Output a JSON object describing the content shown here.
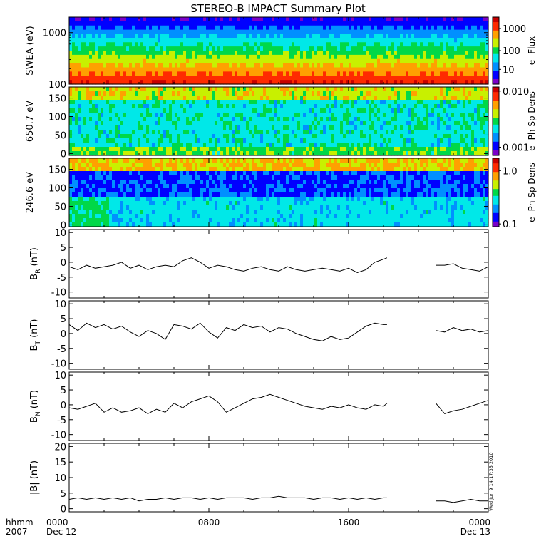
{
  "title": "STEREO-B IMPACT Summary Plot",
  "time_axis": {
    "row1_label": "hhmm",
    "row2_label": "2007",
    "ticks": [
      {
        "hours": 0,
        "time": "0000",
        "date": "Dec 12"
      },
      {
        "hours": 8,
        "time": "0800",
        "date": ""
      },
      {
        "hours": 16,
        "time": "1600",
        "date": ""
      },
      {
        "hours": 24,
        "time": "0000",
        "date": "Dec 13"
      }
    ],
    "range_hours": [
      0,
      24
    ]
  },
  "timestamp": "Wed Jun 9 14:17:35 2010",
  "colors": {
    "spectrogram_scale": [
      "#7a00c8",
      "#0000ff",
      "#0090ff",
      "#00e8e8",
      "#00d848",
      "#c8f000",
      "#ffa000",
      "#ff2a00",
      "#c80000"
    ],
    "gap_color": "#ffffff"
  },
  "spectrograms": [
    {
      "key": "swea",
      "ylabel": "SWEA (eV)",
      "ylog": true,
      "ylim": [
        100,
        2000
      ],
      "yticks": [
        {
          "v": 100,
          "t": "100"
        },
        {
          "v": 1000,
          "t": "1000"
        }
      ],
      "colorbar_label": "e- Flux",
      "colorbar_log": true,
      "colorbar_ticks": [
        {
          "f": 0.22,
          "t": "10"
        },
        {
          "f": 0.5,
          "t": "100"
        },
        {
          "f": 0.83,
          "t": "1000"
        }
      ]
    },
    {
      "key": "pad650",
      "ylabel": "650.7 eV",
      "ylog": false,
      "ylim": [
        -5,
        180
      ],
      "yticks": [
        {
          "v": 0,
          "t": "0"
        },
        {
          "v": 50,
          "t": "50"
        },
        {
          "v": 100,
          "t": "100"
        },
        {
          "v": 150,
          "t": "150"
        }
      ],
      "colorbar_label": "e- Ph Sp Dens",
      "colorbar_log": true,
      "colorbar_ticks": [
        {
          "f": 0.12,
          "t": "0.001"
        },
        {
          "f": 0.94,
          "t": "0.010"
        }
      ]
    },
    {
      "key": "pad246",
      "ylabel": "246.6 eV",
      "ylog": false,
      "ylim": [
        -5,
        180
      ],
      "yticks": [
        {
          "v": 0,
          "t": "0"
        },
        {
          "v": 50,
          "t": "50"
        },
        {
          "v": 100,
          "t": "100"
        },
        {
          "v": 150,
          "t": "150"
        }
      ],
      "colorbar_label": "e- Ph Sp Dens",
      "colorbar_log": true,
      "colorbar_ticks": [
        {
          "f": 0.04,
          "t": "0.1"
        },
        {
          "f": 0.82,
          "t": "1.0"
        }
      ]
    }
  ],
  "chart_data": [
    {
      "type": "line",
      "ylabel_main": "B",
      "ylabel_sub": "R",
      "ylabel_unit": " (nT)",
      "ylim": [
        -12,
        11
      ],
      "yticks": [
        -10,
        -5,
        0,
        5,
        10
      ],
      "data_gaps_hours": [
        [
          18.2,
          21.0
        ]
      ],
      "x_hours": [
        0,
        0.5,
        1,
        1.5,
        2,
        2.5,
        3,
        3.5,
        4,
        4.5,
        5,
        5.5,
        6,
        6.5,
        7,
        7.5,
        8,
        8.5,
        9,
        9.5,
        10,
        10.5,
        11,
        11.5,
        12,
        12.5,
        13,
        13.5,
        14,
        14.5,
        15,
        15.5,
        16,
        16.5,
        17,
        17.5,
        18,
        18.2,
        21.0,
        21.5,
        22,
        22.5,
        23,
        23.5,
        24
      ],
      "values": [
        -1.5,
        -2.5,
        -1.0,
        -2.0,
        -1.5,
        -1.0,
        0.0,
        -2.0,
        -1.0,
        -2.5,
        -1.5,
        -1.0,
        -1.5,
        0.5,
        1.5,
        0.0,
        -2.0,
        -1.0,
        -1.5,
        -2.5,
        -3.0,
        -2.0,
        -1.5,
        -2.5,
        -3.0,
        -1.5,
        -2.5,
        -3.0,
        -2.5,
        -2.0,
        -2.5,
        -3.0,
        -2.0,
        -3.5,
        -2.5,
        0.0,
        1.0,
        1.5,
        -1.0,
        -1.0,
        -0.5,
        -2.0,
        -2.5,
        -3.0,
        -1.5
      ]
    },
    {
      "type": "line",
      "ylabel_main": "B",
      "ylabel_sub": "T",
      "ylabel_unit": " (nT)",
      "ylim": [
        -12,
        11
      ],
      "yticks": [
        -10,
        -5,
        0,
        5,
        10
      ],
      "data_gaps_hours": [
        [
          18.2,
          21.0
        ]
      ],
      "x_hours": [
        0,
        0.5,
        1,
        1.5,
        2,
        2.5,
        3,
        3.5,
        4,
        4.5,
        5,
        5.5,
        6,
        6.5,
        7,
        7.5,
        8,
        8.5,
        9,
        9.5,
        10,
        10.5,
        11,
        11.5,
        12,
        12.5,
        13,
        13.5,
        14,
        14.5,
        15,
        15.5,
        16,
        16.5,
        17,
        17.5,
        18,
        18.2,
        21.0,
        21.5,
        22,
        22.5,
        23,
        23.5,
        24
      ],
      "values": [
        3.0,
        1.0,
        3.5,
        2.0,
        3.0,
        1.5,
        2.5,
        0.5,
        -1.0,
        1.0,
        0.0,
        -2.0,
        3.0,
        2.5,
        1.5,
        3.5,
        0.5,
        -1.5,
        2.0,
        1.0,
        3.0,
        2.0,
        2.5,
        0.5,
        2.0,
        1.5,
        0.0,
        -1.0,
        -2.0,
        -2.5,
        -1.0,
        -2.0,
        -1.5,
        0.5,
        2.5,
        3.5,
        3.0,
        3.0,
        1.0,
        0.5,
        2.0,
        1.0,
        1.5,
        0.5,
        1.0
      ]
    },
    {
      "type": "line",
      "ylabel_main": "B",
      "ylabel_sub": "N",
      "ylabel_unit": " (nT)",
      "ylim": [
        -12,
        11
      ],
      "yticks": [
        -10,
        -5,
        0,
        5,
        10
      ],
      "data_gaps_hours": [
        [
          18.2,
          21.0
        ]
      ],
      "x_hours": [
        0,
        0.5,
        1,
        1.5,
        2,
        2.5,
        3,
        3.5,
        4,
        4.5,
        5,
        5.5,
        6,
        6.5,
        7,
        7.5,
        8,
        8.5,
        9,
        9.5,
        10,
        10.5,
        11,
        11.5,
        12,
        12.5,
        13,
        13.5,
        14,
        14.5,
        15,
        15.5,
        16,
        16.5,
        17,
        17.5,
        18,
        18.2,
        21.0,
        21.5,
        22,
        22.5,
        23,
        23.5,
        24
      ],
      "values": [
        -1.0,
        -1.5,
        -0.5,
        0.5,
        -2.5,
        -1.0,
        -2.5,
        -2.0,
        -1.0,
        -3.0,
        -1.5,
        -2.5,
        0.5,
        -1.0,
        1.0,
        2.0,
        3.0,
        1.0,
        -2.5,
        -1.0,
        0.5,
        2.0,
        2.5,
        3.5,
        2.5,
        1.5,
        0.5,
        -0.5,
        -1.0,
        -1.5,
        -0.5,
        -1.0,
        0.0,
        -1.0,
        -1.5,
        0.0,
        -0.5,
        0.5,
        0.5,
        -3.0,
        -2.0,
        -1.5,
        -0.5,
        0.5,
        1.5
      ]
    },
    {
      "type": "line",
      "ylabel_main": "|B|",
      "ylabel_sub": "",
      "ylabel_unit": " (nT)",
      "ylim": [
        -1,
        21
      ],
      "yticks": [
        0,
        5,
        10,
        15,
        20
      ],
      "data_gaps_hours": [
        [
          18.2,
          21.0
        ]
      ],
      "x_hours": [
        0,
        0.5,
        1,
        1.5,
        2,
        2.5,
        3,
        3.5,
        4,
        4.5,
        5,
        5.5,
        6,
        6.5,
        7,
        7.5,
        8,
        8.5,
        9,
        9.5,
        10,
        10.5,
        11,
        11.5,
        12,
        12.5,
        13,
        13.5,
        14,
        14.5,
        15,
        15.5,
        16,
        16.5,
        17,
        17.5,
        18,
        18.2,
        21.0,
        21.5,
        22,
        22.5,
        23,
        23.5,
        24
      ],
      "values": [
        3.0,
        3.5,
        3.0,
        3.5,
        3.0,
        3.5,
        3.0,
        3.5,
        2.5,
        3.0,
        3.0,
        3.5,
        3.0,
        3.5,
        3.5,
        3.0,
        3.5,
        3.0,
        3.5,
        3.5,
        3.5,
        3.0,
        3.5,
        3.5,
        4.0,
        3.5,
        3.5,
        3.5,
        3.0,
        3.5,
        3.5,
        3.0,
        3.5,
        3.0,
        3.5,
        3.0,
        3.5,
        3.5,
        2.5,
        2.5,
        2.0,
        2.5,
        3.0,
        2.5,
        2.5
      ]
    }
  ]
}
